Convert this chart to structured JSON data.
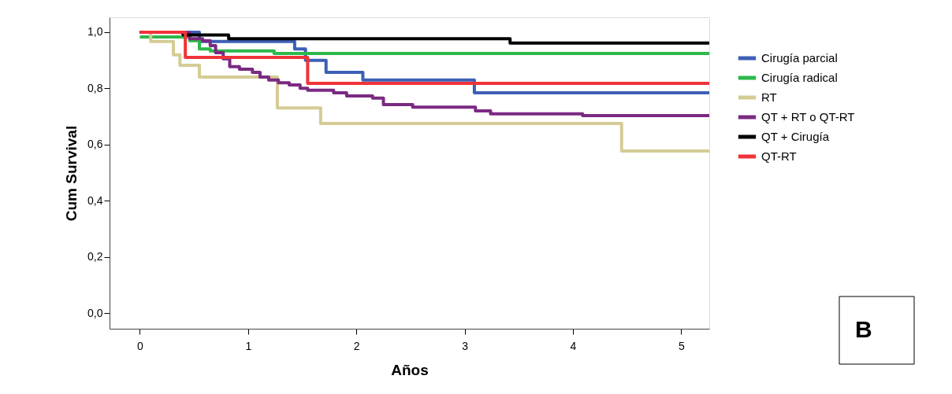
{
  "chart_data": {
    "type": "step",
    "xlabel": "Años",
    "ylabel": "Cum Survival",
    "xlim": [
      -0.28,
      5.26
    ],
    "xticks": [
      0,
      1,
      2,
      3,
      4,
      5
    ],
    "ylim": [
      -0.056,
      1.053
    ],
    "yticks": [
      {
        "value": 0,
        "label": "0,0"
      },
      {
        "value": 0.2,
        "label": "0,2"
      },
      {
        "value": 0.4,
        "label": "0,4"
      },
      {
        "value": 0.6,
        "label": "0,6"
      },
      {
        "value": 0.8,
        "label": "0,8"
      },
      {
        "value": 1.0,
        "label": "1,0"
      }
    ],
    "grid": false,
    "legend": "right",
    "line_style": "solid",
    "marker": "none",
    "annotations": [
      "B"
    ],
    "series": [
      {
        "name": "Cirugía parcial",
        "color": "#3d5fb5",
        "x": [
          0,
          0.55,
          1.43,
          1.53,
          1.72,
          2.06,
          3.09,
          5.26
        ],
        "values": [
          1.0,
          0.967,
          0.94,
          0.9,
          0.857,
          0.83,
          0.784,
          0.784
        ]
      },
      {
        "name": "Cirugía radical",
        "color": "#2db84a",
        "x": [
          0,
          0.46,
          0.55,
          0.65,
          1.24,
          5.26
        ],
        "values": [
          0.983,
          0.97,
          0.94,
          0.933,
          0.924,
          0.924
        ]
      },
      {
        "name": "RT",
        "color": "#d4cc94",
        "x": [
          0,
          0.1,
          0.31,
          0.37,
          0.55,
          1.27,
          1.67,
          4.45,
          5.26
        ],
        "values": [
          1.0,
          0.967,
          0.919,
          0.882,
          0.84,
          0.73,
          0.675,
          0.577,
          0.577
        ]
      },
      {
        "name": "QT + RT o QT-RT",
        "color": "#7b2a82",
        "x": [
          0,
          0.385,
          0.46,
          0.58,
          0.65,
          0.7,
          0.77,
          0.83,
          0.92,
          1.04,
          1.11,
          1.19,
          1.28,
          1.38,
          1.48,
          1.55,
          1.79,
          1.91,
          2.15,
          2.25,
          2.52,
          3.1,
          3.24,
          4.09,
          5.26
        ],
        "values": [
          1.0,
          0.998,
          0.977,
          0.97,
          0.952,
          0.927,
          0.905,
          0.877,
          0.868,
          0.857,
          0.84,
          0.83,
          0.82,
          0.812,
          0.8,
          0.793,
          0.784,
          0.773,
          0.765,
          0.742,
          0.733,
          0.72,
          0.709,
          0.703,
          0.703
        ]
      },
      {
        "name": "QT + Cirugía",
        "color": "#000000",
        "x": [
          0,
          0.4,
          0.82,
          3.42,
          5.26
        ],
        "values": [
          1.0,
          0.99,
          0.977,
          0.961,
          0.961
        ]
      },
      {
        "name": "QT-RT",
        "color": "#f0333a",
        "x": [
          0,
          0.42,
          1.55,
          5.26
        ],
        "values": [
          1.0,
          0.91,
          0.818,
          0.818
        ]
      }
    ]
  }
}
